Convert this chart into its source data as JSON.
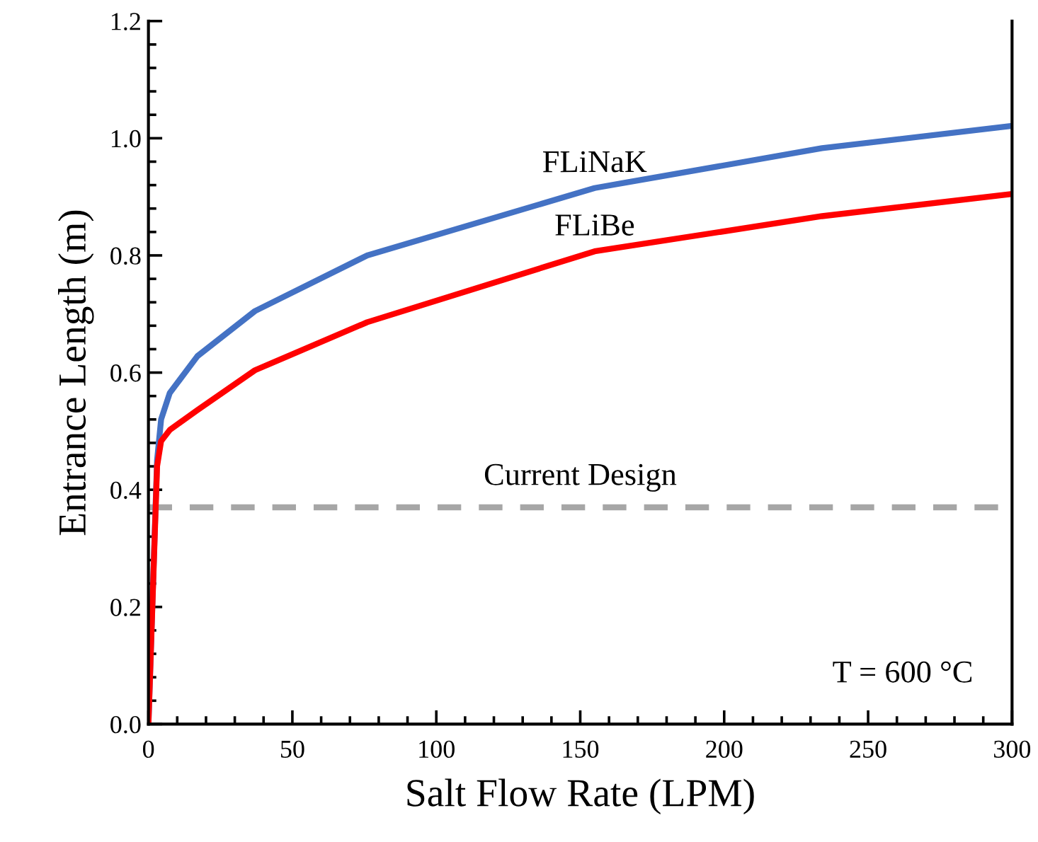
{
  "chart_data": {
    "type": "line",
    "xlabel": "Salt Flow Rate (LPM)",
    "ylabel": "Entrance Length (m)",
    "xlim": [
      0,
      300
    ],
    "ylim": [
      0,
      1.2
    ],
    "xticks": [
      0,
      50,
      100,
      150,
      200,
      250,
      300
    ],
    "yticks": [
      {
        "value": 0,
        "label": "0.0"
      },
      {
        "value": 0.2,
        "label": "0.2"
      },
      {
        "value": 0.4,
        "label": "0.4"
      },
      {
        "value": 0.6,
        "label": "0.6"
      },
      {
        "value": 0.8,
        "label": "0.8"
      },
      {
        "value": 1.0,
        "label": "1.0"
      },
      {
        "value": 1.2,
        "label": "1.2"
      }
    ],
    "grid": false,
    "legend": false,
    "marker": "none",
    "line_style": "solid",
    "series": [
      {
        "name": "FLiNaK",
        "color": "#4472c4",
        "x": [
          0,
          3,
          4.4,
          7.4,
          17,
          37,
          76,
          155,
          234,
          300
        ],
        "values": [
          0,
          0.45,
          0.52,
          0.565,
          0.628,
          0.705,
          0.8,
          0.915,
          0.983,
          1.021
        ]
      },
      {
        "name": "FLiBe",
        "color": "#ff0000",
        "x": [
          0,
          3,
          4.4,
          7.4,
          17,
          37,
          76,
          155,
          234,
          300
        ],
        "values": [
          0,
          0.44,
          0.483,
          0.502,
          0.536,
          0.604,
          0.686,
          0.807,
          0.867,
          0.905
        ]
      }
    ],
    "ref_lines": [
      {
        "axis": "y",
        "value": 0.37,
        "label": "Current Design",
        "color": "#a6a6a6",
        "line_style": "dashed"
      }
    ],
    "annotations": [
      "T = 600 °C"
    ]
  }
}
